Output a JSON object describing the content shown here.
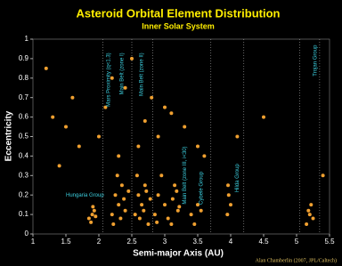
{
  "chart_data": {
    "type": "scatter",
    "title": "Asteroid Orbital Element Distribution",
    "subtitle": "Inner Solar System",
    "x_label": "Semi-major Axis (AU)",
    "y_label": "Eccentricity",
    "credit": "Alan Chamberlin (2007, JPL/Caltech)",
    "color": "#f0a030",
    "xlim": [
      1,
      5.5
    ],
    "xticks": [
      1,
      1.5,
      2,
      2.5,
      3,
      3.5,
      4,
      4.5,
      5,
      5.5
    ],
    "ylim": [
      0,
      1
    ],
    "yticks": [
      0,
      0.1,
      0.2,
      0.3,
      0.4,
      0.5,
      0.6,
      0.7,
      0.8,
      0.9,
      1
    ],
    "dividers": [
      2.06,
      2.5,
      2.82,
      3.7,
      4.2,
      5.05,
      5.35
    ],
    "annotations": [
      {
        "text": "Hungaria Group",
        "x": 1.5,
        "y": 0.2,
        "rotate": false
      },
      {
        "text": "Mars Proximity (q<1.3)",
        "x": 2.15,
        "y": 0.93,
        "rotate": true
      },
      {
        "text": "Main Belt (zone I)",
        "x": 2.35,
        "y": 0.93,
        "rotate": true
      },
      {
        "text": "Main Belt (zone II)",
        "x": 2.65,
        "y": 0.93,
        "rotate": true
      },
      {
        "text": "Main Belt (zone III, i<30)",
        "x": 3.3,
        "y": 0.45,
        "rotate": true
      },
      {
        "text": "Cybele Group",
        "x": 3.55,
        "y": 0.32,
        "rotate": true
      },
      {
        "text": "Hilda Group",
        "x": 4.1,
        "y": 0.36,
        "rotate": true
      },
      {
        "text": "Trojan Group",
        "x": 5.28,
        "y": 0.97,
        "rotate": true
      }
    ],
    "x": [
      1.85,
      1.9,
      1.93,
      1.88,
      1.95,
      1.91,
      2.2,
      2.25,
      2.3,
      2.35,
      2.4,
      2.28,
      2.22,
      2.38,
      2.45,
      2.33,
      2.55,
      2.6,
      2.65,
      2.7,
      2.75,
      2.58,
      2.68,
      2.72,
      2.62,
      2.78,
      2.85,
      2.9,
      3.0,
      3.1,
      3.15,
      3.2,
      2.95,
      3.05,
      3.12,
      3.18,
      3.22,
      2.88,
      3.4,
      3.45,
      3.5,
      3.55,
      3.95,
      3.97,
      4.0,
      3.96,
      5.15,
      5.2,
      5.25,
      5.22,
      5.18,
      1.3,
      1.5,
      1.7,
      2.0,
      2.1,
      2.3,
      2.6,
      2.9,
      3.3,
      3.6,
      4.5,
      5.4,
      1.2,
      1.6,
      2.4,
      2.8,
      3.0,
      2.5,
      2.2,
      3.5,
      4.1,
      1.4,
      2.7,
      3.1
    ],
    "values": [
      0.08,
      0.1,
      0.12,
      0.06,
      0.09,
      0.14,
      0.1,
      0.2,
      0.15,
      0.25,
      0.12,
      0.3,
      0.05,
      0.18,
      0.22,
      0.08,
      0.1,
      0.2,
      0.15,
      0.25,
      0.05,
      0.3,
      0.12,
      0.22,
      0.08,
      0.18,
      0.1,
      0.2,
      0.15,
      0.05,
      0.25,
      0.12,
      0.3,
      0.08,
      0.18,
      0.22,
      0.14,
      0.06,
      0.1,
      0.05,
      0.15,
      0.12,
      0.1,
      0.2,
      0.15,
      0.25,
      0.05,
      0.1,
      0.08,
      0.15,
      0.12,
      0.6,
      0.55,
      0.45,
      0.5,
      0.65,
      0.4,
      0.45,
      0.5,
      0.55,
      0.4,
      0.6,
      0.3,
      0.85,
      0.7,
      0.75,
      0.7,
      0.65,
      0.9,
      0.8,
      0.45,
      0.5,
      0.35,
      0.58,
      0.62
    ]
  }
}
